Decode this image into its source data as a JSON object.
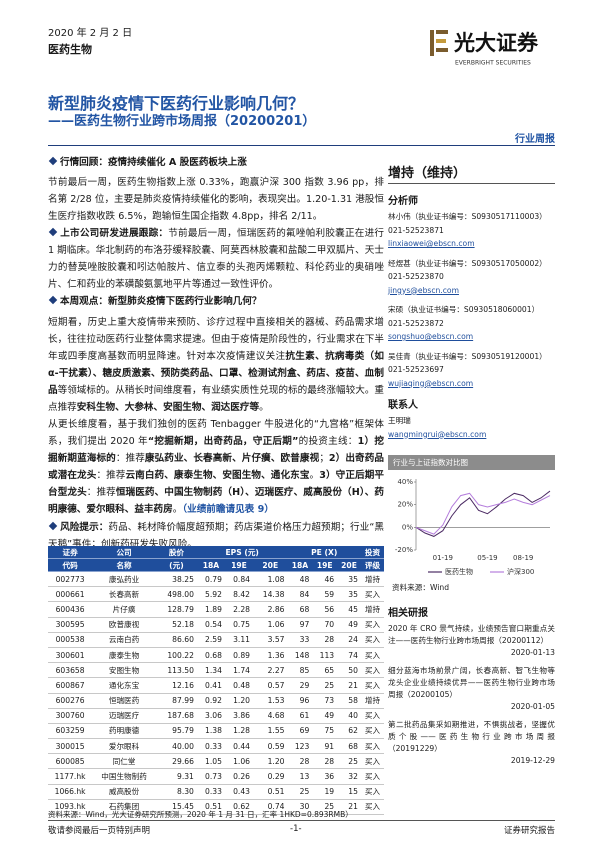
{
  "header": {
    "date": "2020 年 2 月 2 日",
    "sector": "医药生物",
    "logo_name": "光大证券",
    "logo_en": "EVERBRIGHT SECURITIES",
    "title": "新型肺炎疫情下医药行业影响几何？",
    "subtitle": "——医药生物行业跨市场周报（20200201）",
    "report_type": "行业周报"
  },
  "body": [
    {
      "label": "行情回顾：",
      "heading": "疫情持续催化 A 股医药板块上涨"
    },
    {
      "segments": [
        "节前最后一周，医药生物指数上涨 0.33%，跑赢沪深 300 指数 3.96 pp，排名第 2/28 位，主要是肺炎疫情持续催化的影响，表现突出。1.20-1.31 港股恒生医疗指数收跌 6.5%，跑输恒生国企指数 4.8pp，排名 2/11。"
      ]
    },
    {
      "label": "上市公司研发进展跟踪：",
      "segments": [
        "节前最后一周，恒瑞医药的氟唑帕利胶囊正在进行 1 期临床。华北制药的布洛芬缓释胶囊、阿莫西林胶囊和盐酸二甲双胍片、天士力的替莫唑胺胶囊和吲达帕胺片、信立泰的头孢丙烯颗粒、科伦药业的奥硝唑片、仁和药业的苯磺酸氨氯地平片等通过一致性评价。"
      ]
    },
    {
      "label": "本周观点：",
      "heading": "新型肺炎疫情下医药行业影响几何？"
    },
    {
      "segments": [
        "短期看，历史上重大疫情带来预防、诊疗过程中直接相关的器械、药品需求增长，往往拉动医药行业整体需求提速。但由于疫情是阶段性的，行业需求在下半年或四季度高基数而明显降速。针对本次疫情建议关注",
        {
          "bold": "抗生素、抗病毒类（如α-干扰素）、糖皮质激素、预防类药品、口罩、检测试剂盒、药店、疫苗、血制品"
        },
        "等领域标的。从稍长时间维度看，有业绩实质性兑现的标的最终涨幅较大。重点推荐",
        {
          "bold": "安科生物、大参林、安图生物、润达医疗等"
        },
        "。"
      ]
    },
    {
      "segments": [
        "从更长维度看，基于我们独创的医药 Tenbagger 牛股进化的“九宫格”框架体系，我们提出 2020 年",
        {
          "bold": "“挖掘新期，出奇药品，守正后期”"
        },
        "的投资主线：",
        {
          "bold": "1）挖掘新期蓝海标的"
        },
        "：推荐",
        {
          "bold": "康弘药业、长春高新、片仔癀、欧普康视"
        },
        "；",
        {
          "bold": "2）出奇药品或潜在龙头"
        },
        "：推荐",
        {
          "bold": "云南白药、康泰生物、安图生物、通化东宝"
        },
        "。",
        {
          "bold": "3）守正后期平台型龙头"
        },
        "：推荐",
        {
          "bold": "恒瑞医药、中国生物制药（H）、迈瑞医疗、威高股份（H）、药明康德、爱尔眼科、益丰药房"
        },
        "。",
        {
          "accent": "（业绩前瞻请见表 9）"
        }
      ]
    },
    {
      "label": "风险提示：",
      "segments": [
        "药品、耗材降价幅度超预期；药店渠道价格压力超预期；行业“黑天鹅”事件；创新药研发失败风险。"
      ]
    }
  ],
  "table": {
    "head1": [
      "证券",
      "公司",
      "股价",
      "EPS (元)",
      "PE (X)",
      "投资"
    ],
    "head2": [
      "代码",
      "名称",
      "(元)",
      "18A",
      "19E",
      "20E",
      "18A",
      "19E",
      "20E",
      "评级"
    ],
    "rows": [
      [
        "002773",
        "康弘药业",
        "38.25",
        "0.79",
        "0.84",
        "1.08",
        "48",
        "46",
        "35",
        "增持"
      ],
      [
        "000661",
        "长春高新",
        "498.00",
        "5.92",
        "8.42",
        "14.38",
        "84",
        "59",
        "35",
        "买入"
      ],
      [
        "600436",
        "片仔癀",
        "128.79",
        "1.89",
        "2.28",
        "2.86",
        "68",
        "56",
        "45",
        "增持"
      ],
      [
        "300595",
        "欧普康视",
        "52.18",
        "0.54",
        "0.75",
        "1.06",
        "97",
        "70",
        "49",
        "买入"
      ],
      [
        "000538",
        "云南白药",
        "86.60",
        "2.59",
        "3.11",
        "3.57",
        "33",
        "28",
        "24",
        "买入"
      ],
      [
        "300601",
        "康泰生物",
        "100.22",
        "0.68",
        "0.89",
        "1.36",
        "148",
        "113",
        "74",
        "买入"
      ],
      [
        "603658",
        "安图生物",
        "113.50",
        "1.34",
        "1.74",
        "2.27",
        "85",
        "65",
        "50",
        "买入"
      ],
      [
        "600867",
        "通化东宝",
        "12.16",
        "0.41",
        "0.48",
        "0.57",
        "29",
        "25",
        "21",
        "买入"
      ],
      [
        "600276",
        "恒瑞医药",
        "87.99",
        "0.92",
        "1.20",
        "1.53",
        "96",
        "73",
        "58",
        "增持"
      ],
      [
        "300760",
        "迈瑞医疗",
        "187.68",
        "3.06",
        "3.86",
        "4.68",
        "61",
        "49",
        "40",
        "买入"
      ],
      [
        "603259",
        "药明康德",
        "95.79",
        "1.38",
        "1.28",
        "1.55",
        "69",
        "75",
        "62",
        "买入"
      ],
      [
        "300015",
        "爱尔眼科",
        "40.00",
        "0.33",
        "0.44",
        "0.59",
        "123",
        "91",
        "68",
        "买入"
      ],
      [
        "600085",
        "同仁堂",
        "29.66",
        "1.05",
        "1.06",
        "1.20",
        "28",
        "28",
        "25",
        "买入"
      ],
      [
        "1177.hk",
        "中国生物制药",
        "9.31",
        "0.73",
        "0.26",
        "0.29",
        "13",
        "36",
        "32",
        "买入"
      ],
      [
        "1066.hk",
        "威高股份",
        "8.30",
        "0.33",
        "0.43",
        "0.51",
        "25",
        "19",
        "15",
        "买入"
      ],
      [
        "1093.hk",
        "石药集团",
        "15.45",
        "0.51",
        "0.62",
        "0.74",
        "30",
        "25",
        "21",
        "买入"
      ]
    ],
    "note": "资料来源：Wind，光大证券研究所预测，2020 年 1 月 31 日，汇率 1HKD=0.893RMB）"
  },
  "sidebar": {
    "rating": "增持（维持）",
    "analysts_title": "分析师",
    "analysts": [
      {
        "name": "林小伟",
        "cert": "（执业证书编号：S0930517110003）",
        "phone": "021-52523871",
        "email": "linxiaowei@ebscn.com"
      },
      {
        "name": "经煜甚",
        "cert": "（执业证书编号：S0930517050002）",
        "phone": "021-52523870",
        "email": "jingys@ebscn.com"
      },
      {
        "name": "宋硕",
        "cert": "（执业证书编号：S0930518060001）",
        "phone": "021-52523872",
        "email": "songshuo@ebscn.com"
      },
      {
        "name": "吴佳青",
        "cert": "（执业证书编号：S0930519120001）",
        "phone": "021-52523697",
        "email": "wujiaqing@ebscn.com"
      }
    ],
    "contact_title": "联系人",
    "contact": {
      "name": "王明瑞",
      "email": "wangmingrui@ebscn.com"
    },
    "chart": {
      "type": "line",
      "title": "行业与上证指数对比图",
      "categories": [
        null,
        null,
        null,
        "01-19",
        null,
        null,
        null,
        null,
        "05-19",
        null,
        null,
        null,
        "08-19",
        null,
        null,
        null
      ],
      "series": [
        {
          "name": "医药生物",
          "color": "#4b2a63",
          "values": [
            0,
            -5,
            -8,
            -3,
            10,
            20,
            26,
            15,
            12,
            18,
            25,
            30,
            28,
            22,
            26,
            32
          ]
        },
        {
          "name": "沪深300",
          "color": "#b57edc",
          "values": [
            0,
            -3,
            -6,
            2,
            18,
            28,
            30,
            20,
            18,
            20,
            22,
            25,
            22,
            20,
            24,
            28
          ]
        }
      ],
      "ylim": [
        -20,
        40
      ],
      "yticks": [
        {
          "value": -20,
          "label": "-20%"
        },
        {
          "value": 0,
          "label": "0%"
        },
        {
          "value": 20,
          "label": "20%"
        },
        {
          "value": 40,
          "label": "40%"
        }
      ],
      "source": "资料来源：Wind"
    },
    "related_title": "相关研报",
    "related": [
      {
        "title": "2020 年 CRO 景气持续，业绩预告窗口期重点关注——医药生物行业跨市场周报（20200112）",
        "date": "2020-01-13"
      },
      {
        "title": "细分蓝海市场前景广阔，长春高新、智飞生物等龙头企业业绩持续优异——医药生物行业跨市场周报（20200105）",
        "date": "2020-01-05"
      },
      {
        "title": "第二批药品集采如期推进，不惧挑战者，坚握优质个股——医药生物行业跨市场周报（20191229）",
        "date": "2019-12-29"
      }
    ]
  },
  "footer": {
    "left": "敬请参阅最后一页特别声明",
    "page": "-1-",
    "right": "证券研究报告"
  }
}
